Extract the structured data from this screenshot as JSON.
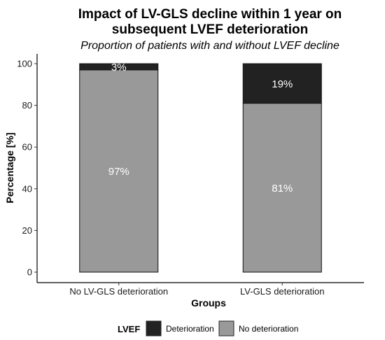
{
  "chart_data": {
    "type": "bar",
    "stacked": true,
    "title_line1": "Impact of LV-GLS decline within 1 year on",
    "title_line2": "subsequent LVEF deterioration",
    "subtitle": "Proportion of patients with and without LVEF decline",
    "xlabel": "Groups",
    "ylabel": "Percentage [%]",
    "ylim": [
      0,
      100
    ],
    "yticks": [
      "0",
      "20",
      "40",
      "60",
      "80",
      "100"
    ],
    "categories": [
      "No LV-GLS deterioration",
      "LV-GLS deterioration"
    ],
    "series": [
      {
        "name": "No deterioration",
        "values": [
          97,
          81
        ],
        "labels": [
          "97%",
          "81%"
        ],
        "color": "#999999"
      },
      {
        "name": "Deterioration",
        "values": [
          3,
          19
        ],
        "labels": [
          "3%",
          "19%"
        ],
        "color": "#222222"
      }
    ],
    "legend": {
      "title": "LVEF",
      "position": "bottom",
      "items": [
        "Deterioration",
        "No deterioration"
      ]
    },
    "grid": false
  }
}
